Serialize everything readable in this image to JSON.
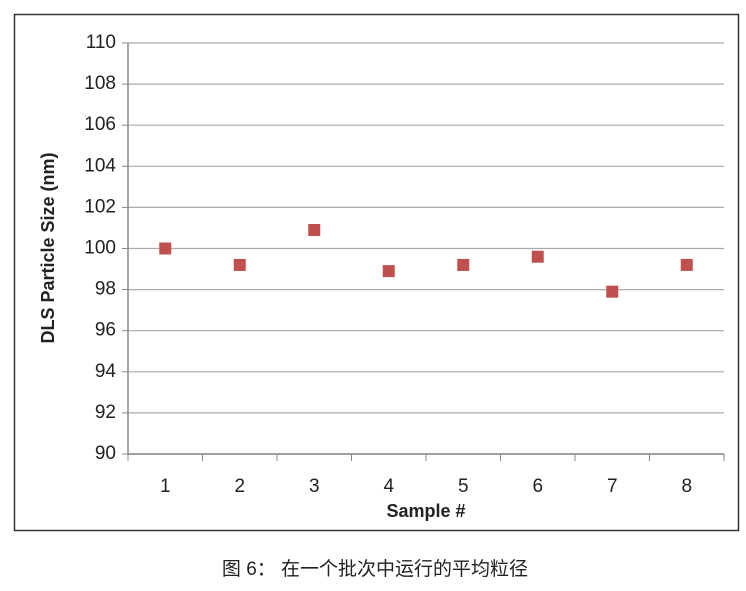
{
  "chart_data": {
    "type": "scatter",
    "y_label": "DLS Particle Size (nm)",
    "x_label": "Sample #",
    "caption": "图 6： 在一个批次中运行的平均粒径",
    "categories": [
      "1",
      "2",
      "3",
      "4",
      "5",
      "6",
      "7",
      "8"
    ],
    "values": [
      100,
      99.2,
      100.9,
      98.9,
      99.2,
      99.6,
      97.9,
      99.2
    ],
    "color": "#c0504d",
    "ylim": [
      90,
      110
    ],
    "yticks": [
      90,
      92,
      94,
      96,
      98,
      100,
      102,
      104,
      106,
      108,
      110
    ],
    "grid": true
  }
}
